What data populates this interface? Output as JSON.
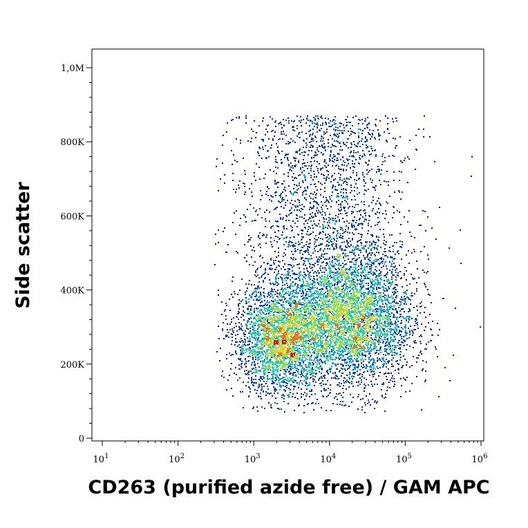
{
  "chart_data": {
    "type": "scatter",
    "subtype": "flow-cytometry density dot plot",
    "xlabel": "CD263 (purified azide free) / GAM APC",
    "ylabel": "Side scatter",
    "x_scale": "log",
    "x_range": [
      10,
      1000000
    ],
    "x_ticks": [
      {
        "base": "10",
        "exp": "1",
        "value": 10
      },
      {
        "base": "10",
        "exp": "2",
        "value": 100
      },
      {
        "base": "10",
        "exp": "3",
        "value": 1000
      },
      {
        "base": "10",
        "exp": "4",
        "value": 10000
      },
      {
        "base": "10",
        "exp": "5",
        "value": 100000
      },
      {
        "base": "10",
        "exp": "6",
        "value": 1000000
      }
    ],
    "y_scale": "linear",
    "y_range": [
      0,
      1050000
    ],
    "y_ticks": [
      {
        "label": "0",
        "value": 0
      },
      {
        "label": "200K",
        "value": 200000
      },
      {
        "label": "400K",
        "value": 400000
      },
      {
        "label": "600K",
        "value": 600000
      },
      {
        "label": "800K",
        "value": 800000
      },
      {
        "label": "1,0M",
        "value": 1000000
      }
    ],
    "grid": false,
    "legend": "none",
    "populations": [
      {
        "x_center": 2200,
        "y_center": 265000,
        "x_log_spread": 0.3,
        "y_spread": 75000,
        "weight": 0.3
      },
      {
        "x_center": 20000,
        "y_center": 320000,
        "x_log_spread": 0.4,
        "y_spread": 95000,
        "weight": 0.4
      },
      {
        "x_center": 8000,
        "y_center": 520000,
        "x_log_spread": 0.55,
        "y_spread": 200000,
        "weight": 0.3
      }
    ],
    "density_colors": [
      "#1010a0",
      "#0038d8",
      "#00a0e0",
      "#20d0a0",
      "#90e040",
      "#e8d020",
      "#f07010",
      "#e01810"
    ]
  }
}
